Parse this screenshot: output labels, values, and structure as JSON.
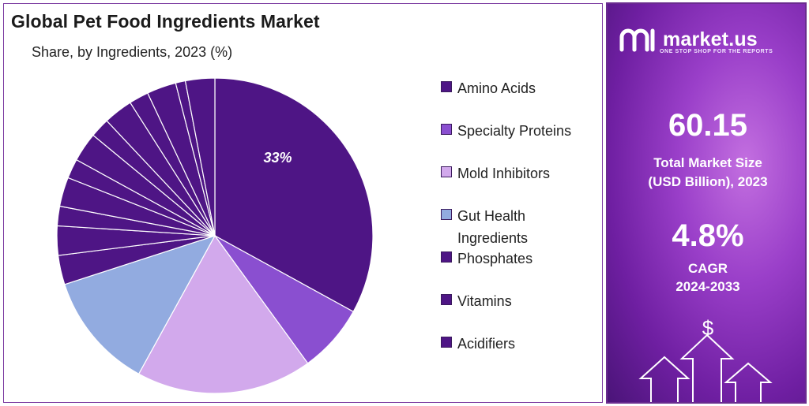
{
  "title": "Global Pet Food Ingredients Market",
  "subtitle": "Share, by Ingredients, 2023 (%)",
  "chart_data": {
    "type": "pie",
    "title": "Global Pet Food Ingredients Market",
    "subtitle": "Share, by Ingredients, 2023 (%)",
    "slices": [
      {
        "name": "Amino Acids",
        "value": 33,
        "label": "33%",
        "color": "#4e1585"
      },
      {
        "name": "Specialty Proteins",
        "value": 7,
        "color": "#8a4fd0"
      },
      {
        "name": "Mold Inhibitors",
        "value": 18,
        "color": "#d2a9ec"
      },
      {
        "name": "Gut Health Ingredients",
        "value": 12,
        "color": "#92abe0"
      },
      {
        "name": "Phosphates",
        "value": 3,
        "color": "#4e1585"
      },
      {
        "name": "Vitamins",
        "value": 3,
        "color": "#4e1585"
      },
      {
        "name": "Acidifiers",
        "value": 2,
        "color": "#4e1585"
      },
      {
        "name": "",
        "value": 3,
        "color": "#4e1585"
      },
      {
        "name": "",
        "value": 2,
        "color": "#4e1585"
      },
      {
        "name": "",
        "value": 3,
        "color": "#4e1585"
      },
      {
        "name": "",
        "value": 2,
        "color": "#4e1585"
      },
      {
        "name": "",
        "value": 3,
        "color": "#4e1585"
      },
      {
        "name": "",
        "value": 2,
        "color": "#4e1585"
      },
      {
        "name": "",
        "value": 3,
        "color": "#4e1585"
      },
      {
        "name": "",
        "value": 1,
        "color": "#4e1585"
      },
      {
        "name": "",
        "value": 3,
        "color": "#4e1585"
      }
    ],
    "legend": [
      "Amino Acids",
      "Specialty Proteins",
      "Mold Inhibitors",
      "Gut Health Ingredients",
      "Phosphates",
      "Vitamins",
      "Acidifiers"
    ],
    "legend_placement": "right"
  },
  "legend_colors": [
    "#4e1585",
    "#8a4fd0",
    "#d2a9ec",
    "#92abe0",
    "#4e1585",
    "#4e1585",
    "#4e1585"
  ],
  "side_panel": {
    "brand": "market.us",
    "tagline": "ONE STOP SHOP FOR THE REPORTS",
    "market_size_value": "60.15",
    "market_size_label_1": "Total Market Size",
    "market_size_label_2": "(USD Billion), 2023",
    "cagr_value": "4.8%",
    "cagr_label_1": "CAGR",
    "cagr_label_2": "2024-2033",
    "icons": [
      "logo-icon",
      "dollar-icon",
      "up-arrow-icon"
    ],
    "currency_symbol": "$"
  }
}
